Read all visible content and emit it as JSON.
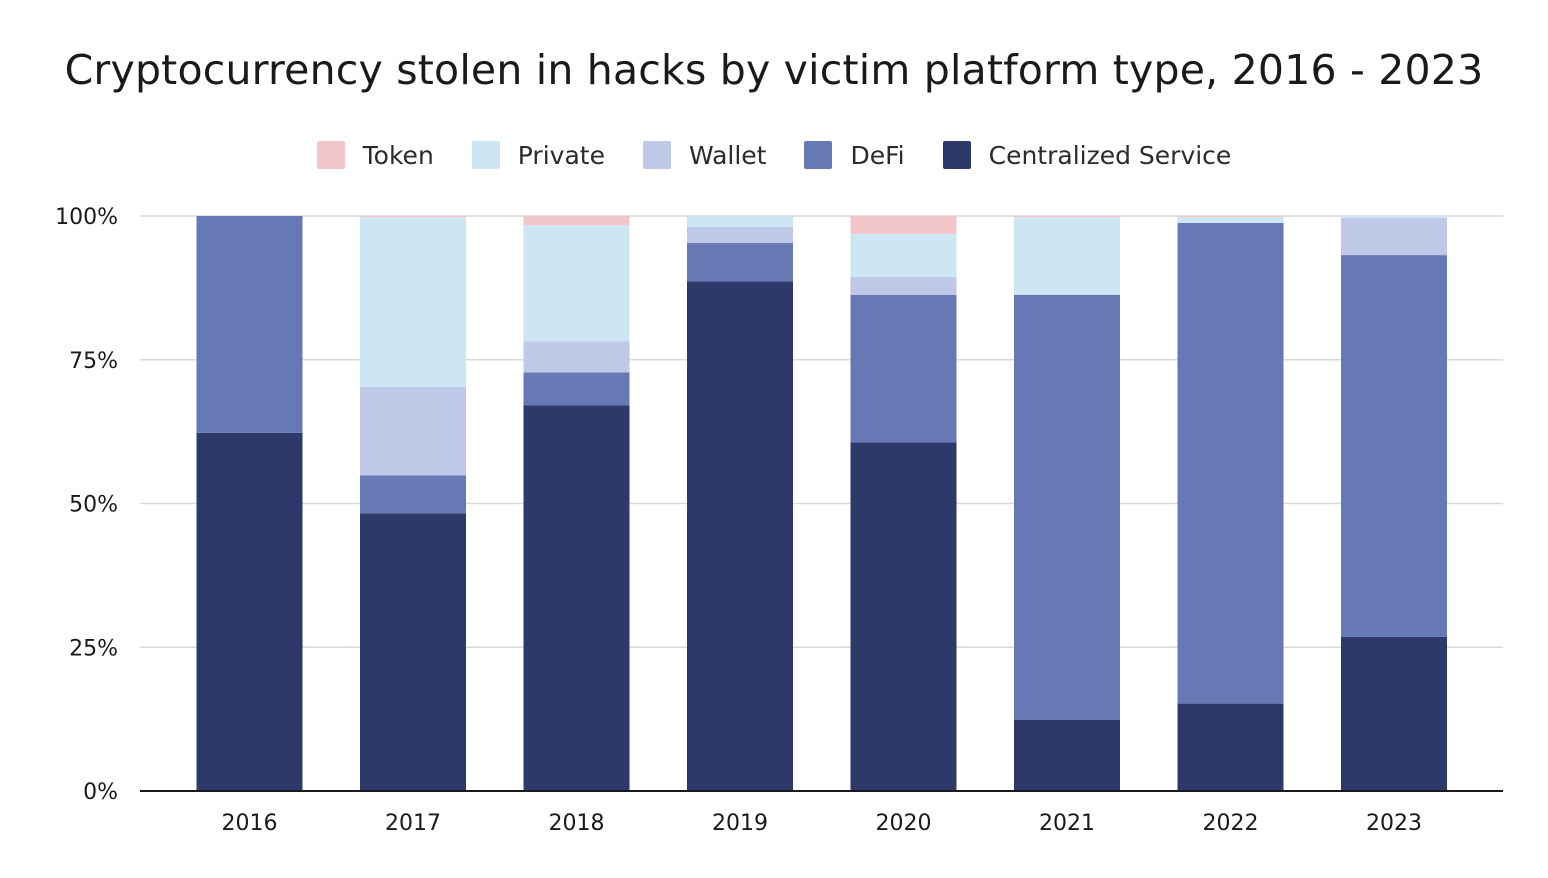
{
  "chart_data": {
    "type": "bar",
    "stacked": true,
    "title": "Cryptocurrency stolen in hacks by victim platform type, 2016 - 2023",
    "xlabel": "",
    "ylabel": "",
    "ylim": [
      0,
      100
    ],
    "y_ticks": [
      "0%",
      "25%",
      "50%",
      "75%",
      "100%"
    ],
    "y_tick_values": [
      0,
      25,
      50,
      75,
      100
    ],
    "grid": true,
    "legend_position": "top-center",
    "categories": [
      "2016",
      "2017",
      "2018",
      "2019",
      "2020",
      "2021",
      "2022",
      "2023"
    ],
    "series": [
      {
        "name": "Centralized Service",
        "color": "#2d396b",
        "values": [
          62.3,
          48.3,
          67.1,
          88.6,
          60.6,
          12.4,
          15.2,
          26.8
        ]
      },
      {
        "name": "DeFi",
        "color": "#6779b4",
        "values": [
          37.7,
          6.6,
          5.7,
          6.7,
          25.7,
          73.9,
          83.6,
          66.4
        ]
      },
      {
        "name": "Wallet",
        "color": "#bfc8e6",
        "values": [
          0,
          15.4,
          5.4,
          2.8,
          3.1,
          0,
          0,
          6.5
        ]
      },
      {
        "name": "Private",
        "color": "#cce6f4",
        "values": [
          0,
          29.5,
          20.2,
          1.9,
          7.5,
          13.5,
          1.0,
          0.3
        ]
      },
      {
        "name": "Token",
        "color": "#f2c5c8",
        "values": [
          0,
          0.2,
          1.6,
          0,
          3.1,
          0.2,
          0.2,
          0
        ]
      }
    ],
    "legend_order": [
      "Token",
      "Private",
      "Wallet",
      "DeFi",
      "Centralized Service"
    ]
  }
}
